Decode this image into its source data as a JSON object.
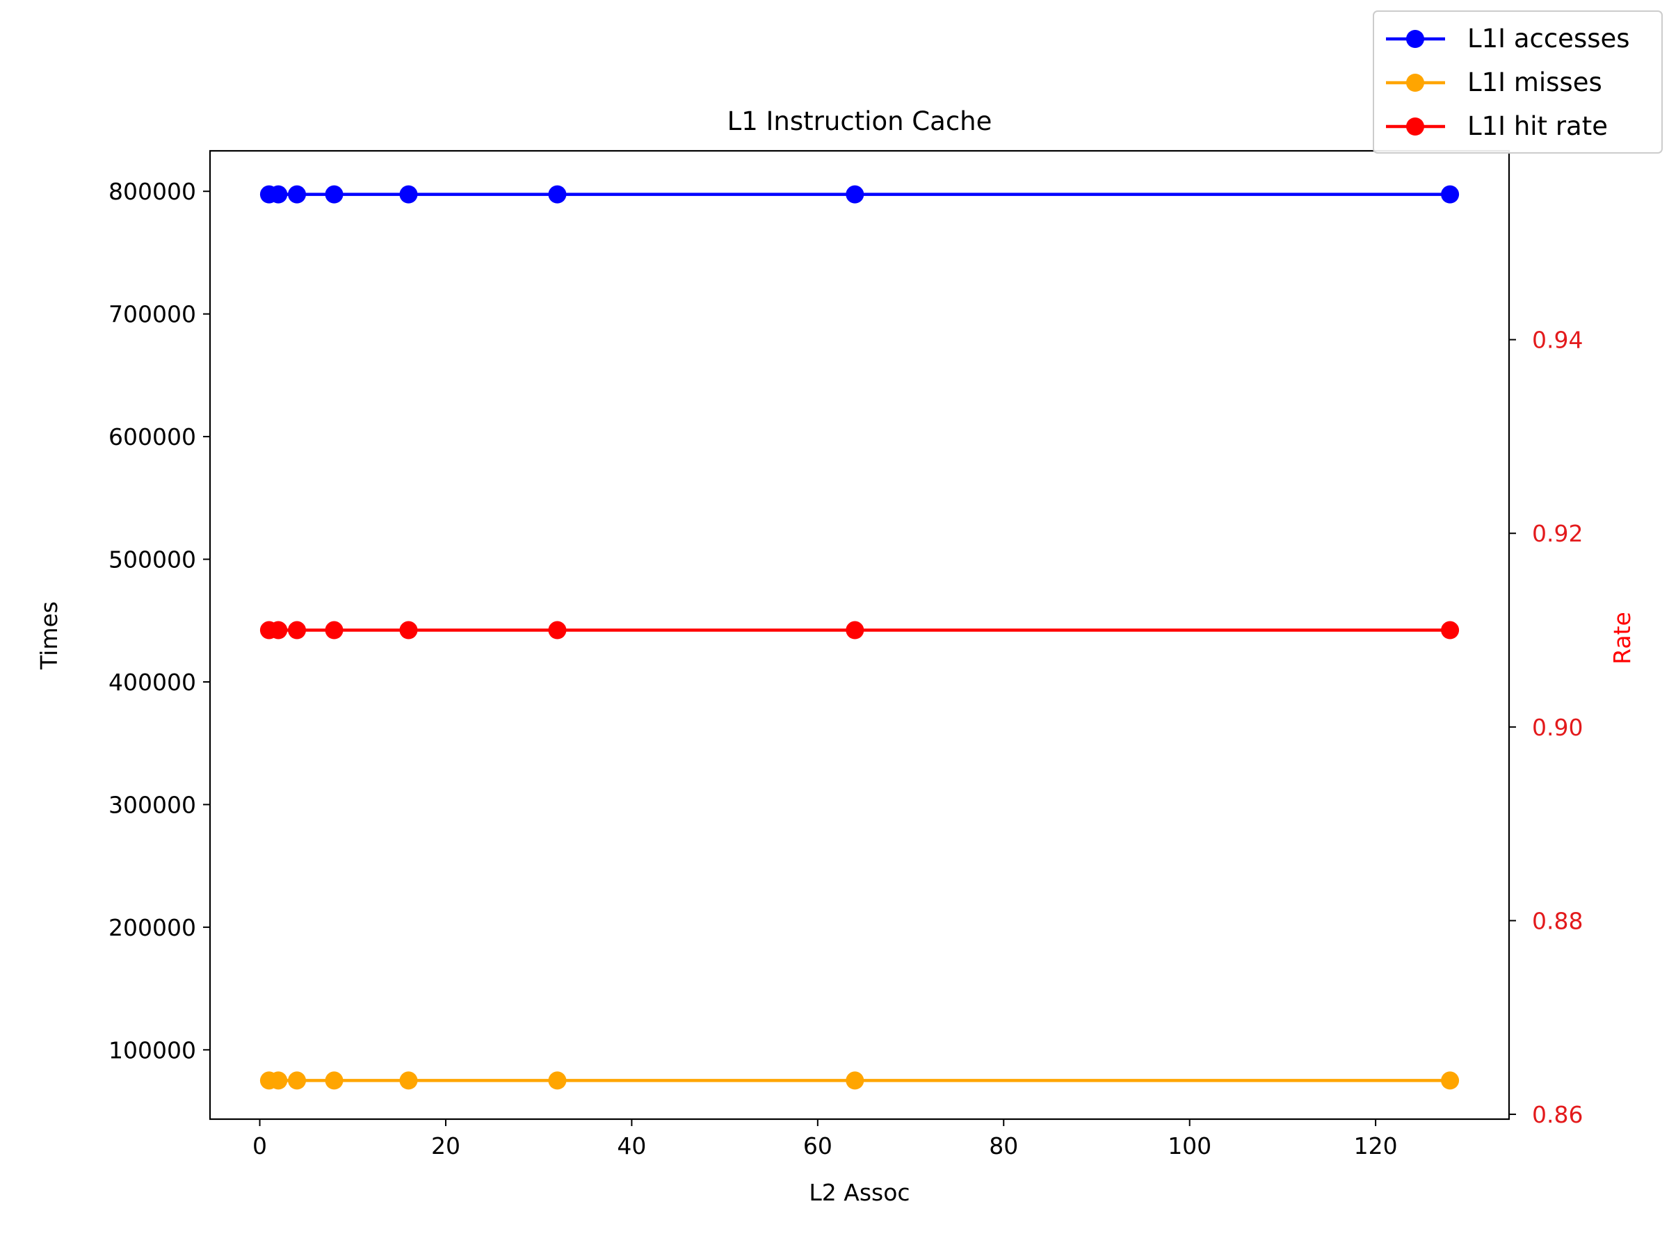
{
  "chart_data": {
    "type": "line",
    "title": "L1 Instruction Cache",
    "xlabel": "L2 Assoc",
    "ylabel": "Times",
    "y2label": "Rate",
    "x": [
      1,
      2,
      4,
      8,
      16,
      32,
      64,
      128
    ],
    "xlim": [
      -5.35,
      134.35
    ],
    "ylim": [
      43500,
      833000
    ],
    "y2lim": [
      0.8595,
      0.9595
    ],
    "xticks": [
      0,
      20,
      40,
      60,
      80,
      100,
      120
    ],
    "yticks": [
      100000,
      200000,
      300000,
      400000,
      500000,
      600000,
      700000,
      800000
    ],
    "y2ticks": [
      0.86,
      0.88,
      0.9,
      0.92,
      0.94
    ],
    "y2_tick_color": "#e31a1c",
    "grid": false,
    "legend_position": "top-right",
    "series": [
      {
        "name": "L1I accesses",
        "axis": "left",
        "color": "#0000ff",
        "marker": "circle",
        "values": [
          797500,
          797500,
          797500,
          797500,
          797500,
          797500,
          797500,
          797500
        ]
      },
      {
        "name": "L1I misses",
        "axis": "left",
        "color": "#ffa500",
        "marker": "circle",
        "values": [
          75000,
          75000,
          75000,
          75000,
          75000,
          75000,
          75000,
          75000
        ]
      },
      {
        "name": "L1I hit rate",
        "axis": "right",
        "color": "#ff0000",
        "marker": "circle",
        "values": [
          0.91,
          0.91,
          0.91,
          0.91,
          0.91,
          0.91,
          0.91,
          0.91
        ]
      }
    ]
  }
}
